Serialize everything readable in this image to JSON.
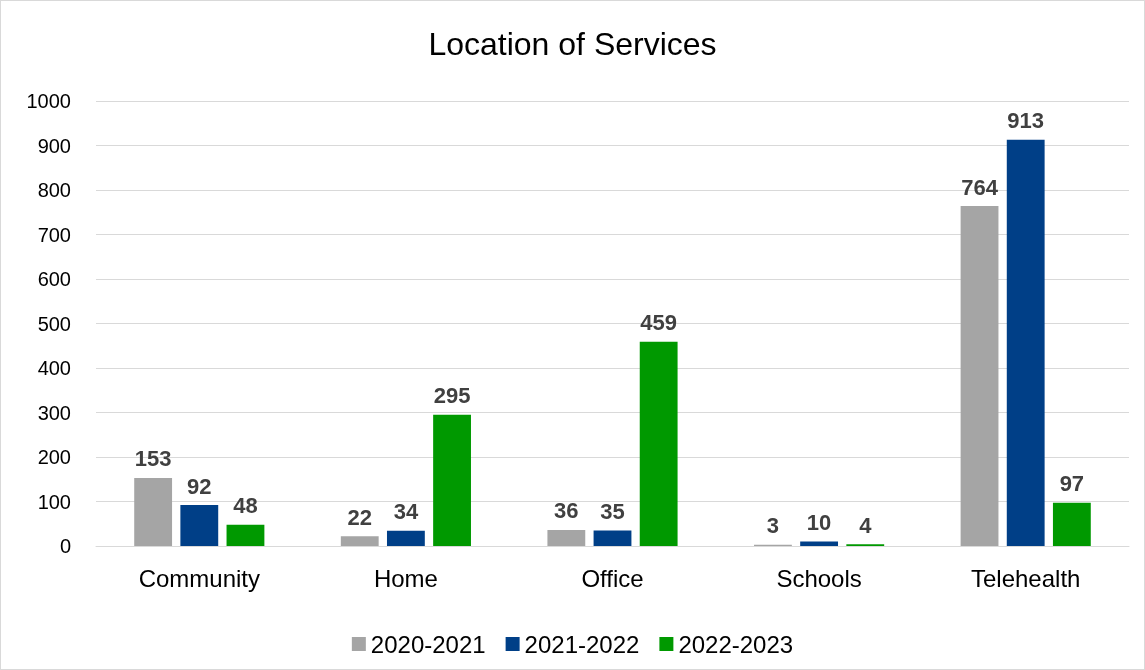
{
  "chart_data": {
    "type": "bar",
    "title": "Location of Services",
    "categories": [
      "Community",
      "Home",
      "Office",
      "Schools",
      "Telehealth"
    ],
    "series": [
      {
        "name": "2020-2021",
        "color": "#a5a5a5",
        "values": [
          153,
          22,
          36,
          3,
          764
        ]
      },
      {
        "name": "2021-2022",
        "color": "#003f87",
        "values": [
          92,
          34,
          35,
          10,
          913
        ]
      },
      {
        "name": "2022-2023",
        "color": "#009900",
        "values": [
          48,
          295,
          459,
          4,
          97
        ]
      }
    ],
    "ylim": [
      0,
      1000
    ],
    "yticks": [
      0,
      100,
      200,
      300,
      400,
      500,
      600,
      700,
      800,
      900,
      1000
    ],
    "grid": "y",
    "legend": "bottom",
    "data_labels": true
  }
}
